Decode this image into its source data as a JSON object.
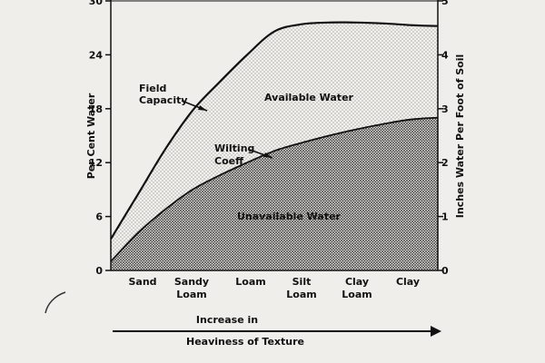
{
  "chart_data": {
    "type": "area",
    "categories": [
      "Sand",
      "Sandy\nLoam",
      "Loam",
      "Silt\nLoam",
      "Clay\nLoam",
      "Clay"
    ],
    "ylabel": "Per Cent Water",
    "y2label": "Inches Water Per Foot of Soil",
    "ylim": [
      0,
      30
    ],
    "y2lim": [
      0,
      5
    ],
    "yticks": [
      0,
      6,
      12,
      18,
      24,
      30
    ],
    "y2ticks": [
      0,
      1,
      2,
      3,
      4,
      5
    ],
    "series": [
      {
        "name": "Field Capacity",
        "x": [
          0,
          0.5,
          1,
          1.5,
          2,
          2.5,
          3,
          3.5,
          4,
          4.5,
          5,
          5.5,
          6
        ],
        "values": [
          3.5,
          8.5,
          13.5,
          17.8,
          21,
          24,
          26.6,
          27.4,
          27.6,
          27.6,
          27.5,
          27.3,
          27.2
        ]
      },
      {
        "name": "Wilting Coeff.",
        "x": [
          0,
          0.5,
          1,
          1.5,
          2,
          2.5,
          3,
          3.5,
          4,
          4.5,
          5,
          5.5,
          6
        ],
        "values": [
          1.0,
          4.2,
          6.8,
          9.0,
          10.6,
          12.0,
          13.3,
          14.2,
          15.0,
          15.7,
          16.3,
          16.8,
          17.0
        ]
      }
    ],
    "annotations": {
      "field_capacity": "Field\nCapacity",
      "wilting": "Wilting\nCoeff.",
      "available": "Available Water",
      "unavailable": "Unavailable Water"
    },
    "bottom_caption": {
      "line1": "Increase in",
      "line2": "Heaviness of Texture"
    }
  }
}
